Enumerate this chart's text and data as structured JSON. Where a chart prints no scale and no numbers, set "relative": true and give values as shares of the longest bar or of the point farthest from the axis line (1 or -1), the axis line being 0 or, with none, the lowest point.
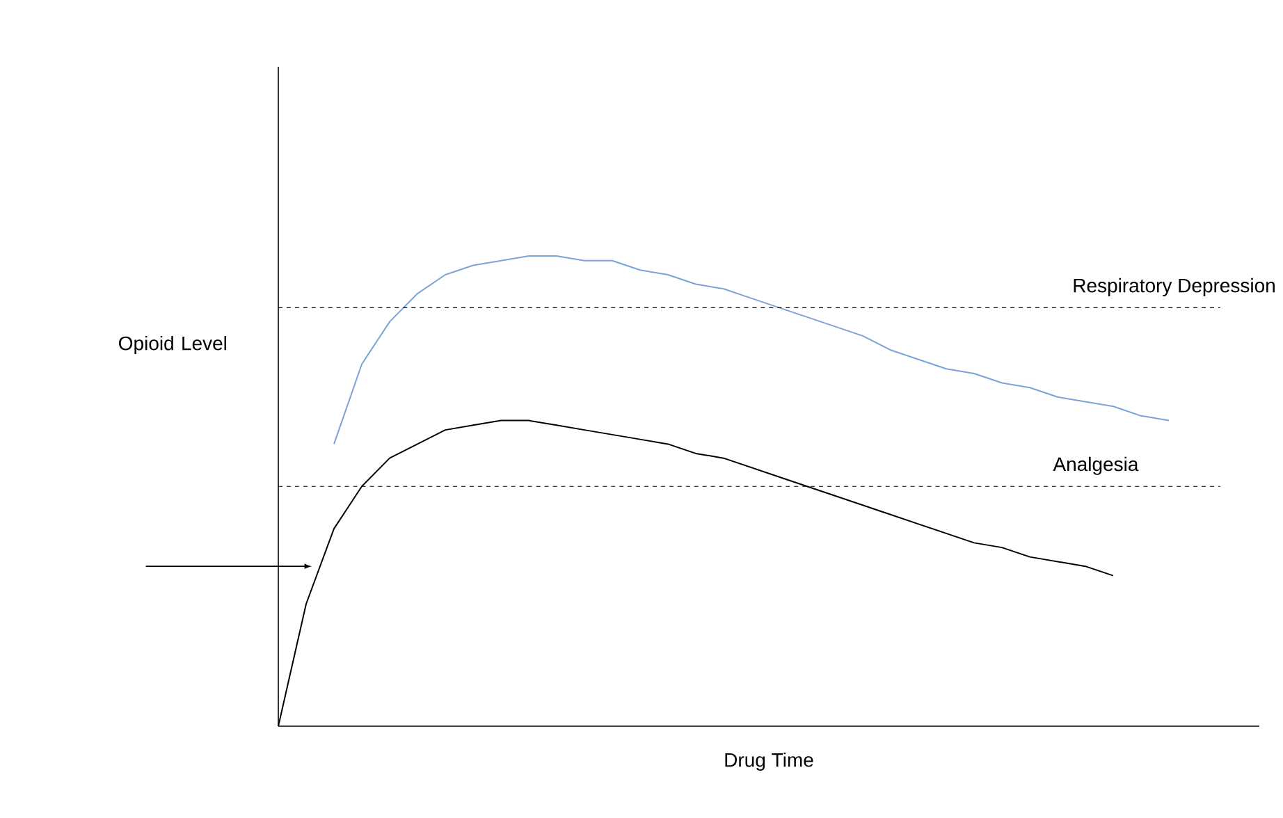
{
  "chart_data": {
    "type": "line",
    "relative": true,
    "xlabel": "Drug Time",
    "ylabel": "Opioid Level",
    "categories": [
      null,
      null,
      null,
      null,
      null,
      null,
      null,
      null,
      null,
      null,
      null,
      null,
      null,
      null,
      null,
      null,
      null,
      null,
      null,
      null,
      null,
      null,
      null,
      null,
      null,
      null,
      null,
      null,
      null,
      null,
      null,
      null,
      null
    ],
    "series": [
      {
        "color": "#7aa3d6",
        "values": [
          null,
          null,
          0.6,
          0.77,
          0.86,
          0.92,
          0.96,
          0.98,
          0.99,
          1.0,
          1.0,
          0.99,
          0.99,
          0.97,
          0.96,
          0.94,
          0.93,
          0.91,
          0.89,
          0.87,
          0.85,
          0.83,
          0.8,
          0.78,
          0.76,
          0.75,
          0.73,
          0.72,
          0.7,
          0.69,
          0.68,
          0.66,
          0.65
        ]
      },
      {
        "color": "#000000",
        "values": [
          0,
          0.26,
          0.42,
          0.51,
          0.57,
          0.6,
          0.63,
          0.64,
          0.65,
          0.65,
          0.64,
          0.63,
          0.62,
          0.61,
          0.6,
          0.58,
          0.57,
          0.55,
          0.53,
          0.51,
          0.49,
          0.47,
          0.45,
          0.43,
          0.41,
          0.39,
          0.38,
          0.36,
          0.35,
          0.34,
          0.32,
          null,
          null
        ]
      }
    ],
    "ref_lines": [
      {
        "axis": "y",
        "value": 0.89,
        "label": "Respiratory Depression",
        "color": "#000000",
        "line_style": "dashed"
      },
      {
        "axis": "y",
        "value": 0.51,
        "label": "Analgesia",
        "color": "#000000",
        "line_style": "dashed"
      }
    ]
  }
}
